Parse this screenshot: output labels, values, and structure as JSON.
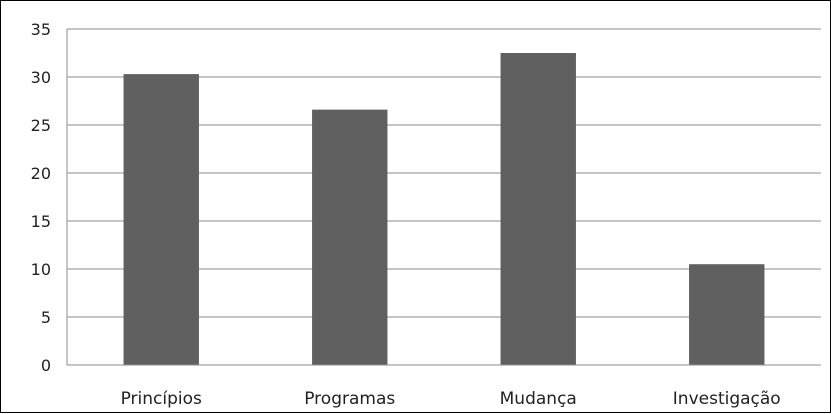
{
  "chart_data": {
    "type": "bar",
    "title": "",
    "xlabel": "",
    "ylabel": "",
    "categories": [
      "Princípios",
      "Programas",
      "Mudança",
      "Investigação"
    ],
    "series": [
      {
        "values": [
          30.3,
          26.6,
          32.5,
          10.5
        ]
      }
    ],
    "ylim": [
      0,
      35
    ],
    "yticks": [
      "0",
      "5",
      "10",
      "15",
      "20",
      "25",
      "30",
      "35"
    ],
    "grid": true,
    "legend": "none",
    "colors": {
      "bar": "#606060",
      "grid": "#8c8c8c",
      "axis": "#8c8c8c"
    }
  }
}
